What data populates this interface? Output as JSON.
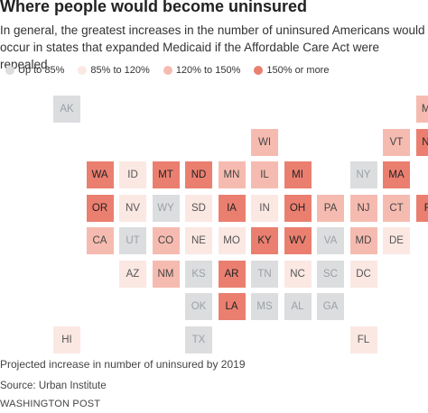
{
  "title": "Where people would become uninsured",
  "subtitle": "In general, the greatest increases in the number of uninsured Americans would occur in states that expanded Medicaid if the Affordable Care Act were repealed.",
  "legend": [
    {
      "label": "Up to 85%",
      "color": "#dcdddf"
    },
    {
      "label": "85% to 120%",
      "color": "#fbe8e3"
    },
    {
      "label": "120% to 150%",
      "color": "#f6bbb0"
    },
    {
      "label": "150% or more",
      "color": "#ea7f70"
    }
  ],
  "footnote": "Projected increase in number of uninsured by 2019",
  "source": "Source: Urban Institute",
  "credit": "WASHINGTON POST",
  "chart_data": {
    "type": "heatmap",
    "categories": [
      "Up to 85%",
      "85% to 120%",
      "120% to 150%",
      "150% or more"
    ],
    "states": [
      {
        "abbr": "AK",
        "row": 0,
        "col": 0,
        "category": 0
      },
      {
        "abbr": "ME",
        "row": 0,
        "col": 11,
        "category": 2
      },
      {
        "abbr": "WI",
        "row": 1,
        "col": 6,
        "category": 2
      },
      {
        "abbr": "VT",
        "row": 1,
        "col": 10,
        "category": 2
      },
      {
        "abbr": "NH",
        "row": 1,
        "col": 11,
        "category": 3
      },
      {
        "abbr": "WA",
        "row": 2,
        "col": 1,
        "category": 3
      },
      {
        "abbr": "ID",
        "row": 2,
        "col": 2,
        "category": 1
      },
      {
        "abbr": "MT",
        "row": 2,
        "col": 3,
        "category": 3
      },
      {
        "abbr": "ND",
        "row": 2,
        "col": 4,
        "category": 3
      },
      {
        "abbr": "MN",
        "row": 2,
        "col": 5,
        "category": 2
      },
      {
        "abbr": "IL",
        "row": 2,
        "col": 6,
        "category": 2
      },
      {
        "abbr": "MI",
        "row": 2,
        "col": 7,
        "category": 3
      },
      {
        "abbr": "NY",
        "row": 2,
        "col": 9,
        "category": 0
      },
      {
        "abbr": "MA",
        "row": 2,
        "col": 10,
        "category": 3
      },
      {
        "abbr": "OR",
        "row": 3,
        "col": 1,
        "category": 3
      },
      {
        "abbr": "NV",
        "row": 3,
        "col": 2,
        "category": 1
      },
      {
        "abbr": "WY",
        "row": 3,
        "col": 3,
        "category": 0
      },
      {
        "abbr": "SD",
        "row": 3,
        "col": 4,
        "category": 1
      },
      {
        "abbr": "IA",
        "row": 3,
        "col": 5,
        "category": 3
      },
      {
        "abbr": "IN",
        "row": 3,
        "col": 6,
        "category": 1
      },
      {
        "abbr": "OH",
        "row": 3,
        "col": 7,
        "category": 3
      },
      {
        "abbr": "PA",
        "row": 3,
        "col": 8,
        "category": 2
      },
      {
        "abbr": "NJ",
        "row": 3,
        "col": 9,
        "category": 2
      },
      {
        "abbr": "CT",
        "row": 3,
        "col": 10,
        "category": 2
      },
      {
        "abbr": "RI",
        "row": 3,
        "col": 11,
        "category": 3
      },
      {
        "abbr": "CA",
        "row": 4,
        "col": 1,
        "category": 2
      },
      {
        "abbr": "UT",
        "row": 4,
        "col": 2,
        "category": 0
      },
      {
        "abbr": "CO",
        "row": 4,
        "col": 3,
        "category": 2
      },
      {
        "abbr": "NE",
        "row": 4,
        "col": 4,
        "category": 1
      },
      {
        "abbr": "MO",
        "row": 4,
        "col": 5,
        "category": 1
      },
      {
        "abbr": "KY",
        "row": 4,
        "col": 6,
        "category": 3
      },
      {
        "abbr": "WV",
        "row": 4,
        "col": 7,
        "category": 3
      },
      {
        "abbr": "VA",
        "row": 4,
        "col": 8,
        "category": 0
      },
      {
        "abbr": "MD",
        "row": 4,
        "col": 9,
        "category": 2
      },
      {
        "abbr": "DE",
        "row": 4,
        "col": 10,
        "category": 1
      },
      {
        "abbr": "AZ",
        "row": 5,
        "col": 2,
        "category": 1
      },
      {
        "abbr": "NM",
        "row": 5,
        "col": 3,
        "category": 2
      },
      {
        "abbr": "KS",
        "row": 5,
        "col": 4,
        "category": 0
      },
      {
        "abbr": "AR",
        "row": 5,
        "col": 5,
        "category": 3
      },
      {
        "abbr": "TN",
        "row": 5,
        "col": 6,
        "category": 0
      },
      {
        "abbr": "NC",
        "row": 5,
        "col": 7,
        "category": 1
      },
      {
        "abbr": "SC",
        "row": 5,
        "col": 8,
        "category": 0
      },
      {
        "abbr": "DC",
        "row": 5,
        "col": 9,
        "category": 1
      },
      {
        "abbr": "OK",
        "row": 6,
        "col": 4,
        "category": 0
      },
      {
        "abbr": "LA",
        "row": 6,
        "col": 5,
        "category": 3
      },
      {
        "abbr": "MS",
        "row": 6,
        "col": 6,
        "category": 0
      },
      {
        "abbr": "AL",
        "row": 6,
        "col": 7,
        "category": 0
      },
      {
        "abbr": "GA",
        "row": 6,
        "col": 8,
        "category": 0
      },
      {
        "abbr": "HI",
        "row": 7,
        "col": 0,
        "category": 1
      },
      {
        "abbr": "TX",
        "row": 7,
        "col": 4,
        "category": 0
      },
      {
        "abbr": "FL",
        "row": 7,
        "col": 9,
        "category": 1
      }
    ]
  }
}
